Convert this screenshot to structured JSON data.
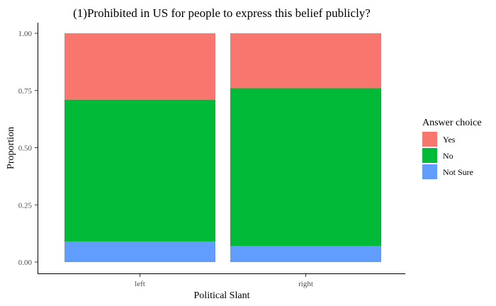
{
  "chart_data": {
    "type": "bar",
    "stacked": true,
    "title": "(1)Prohibited in US for people to express this belief publicly?",
    "xlabel": "Political Slant",
    "ylabel": "Proportion",
    "categories": [
      "left",
      "right"
    ],
    "ylim": [
      0,
      1
    ],
    "yticks": [
      "0.00",
      "0.25",
      "0.50",
      "0.75",
      "1.00"
    ],
    "grid": false,
    "legend": {
      "title": "Answer choice",
      "placement": "right"
    },
    "series": [
      {
        "name": "Not Sure",
        "color": "#619CFF",
        "values": [
          0.09,
          0.07
        ]
      },
      {
        "name": "No",
        "color": "#00BA38",
        "values": [
          0.62,
          0.69
        ]
      },
      {
        "name": "Yes",
        "color": "#F8766D",
        "values": [
          0.29,
          0.24
        ]
      }
    ],
    "legend_order": [
      "Yes",
      "No",
      "Not Sure"
    ]
  }
}
